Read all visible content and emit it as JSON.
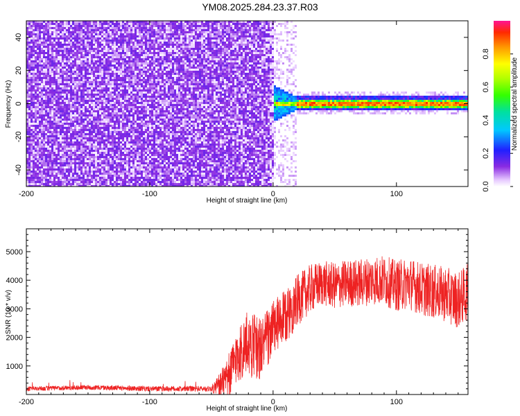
{
  "title": "YM08.2025.284.23.37.R03",
  "colors": {
    "snr_line": "#ee2222",
    "noise_purple": "#7a1ff0",
    "frame": "#000000"
  },
  "chart_data": [
    {
      "type": "heatmap",
      "xlabel": "Height of straight line (km)",
      "ylabel": "Frequency (Hz)",
      "xlim": [
        -200,
        158
      ],
      "ylim": [
        -50,
        50
      ],
      "xticks": [
        "-200",
        "-100",
        "0",
        "100"
      ],
      "yticks": [
        "-40",
        "-20",
        "0",
        "20",
        "40"
      ],
      "xtick_values": [
        -200,
        -100,
        0,
        100
      ],
      "ytick_values": [
        -40,
        -20,
        0,
        20,
        40
      ],
      "colorbar": {
        "label": "Normalized spectral amplitude",
        "range": [
          0,
          1
        ],
        "ticks": [
          "0.0",
          "0.2",
          "0.4",
          "0.6",
          "0.8"
        ],
        "tick_values": [
          0.0,
          0.2,
          0.4,
          0.6,
          0.8
        ]
      },
      "regions": [
        {
          "x_range": [
            -200,
            0
          ],
          "freq_range": [
            -50,
            50
          ],
          "amplitude": "low, broadband noise"
        },
        {
          "x_range": [
            0,
            158
          ],
          "freq_center": 0,
          "amplitude": "high, narrowband signal near 0 Hz"
        }
      ]
    },
    {
      "type": "line",
      "xlabel": "Height of straight line (km)",
      "ylabel": "SNR (10 * v/v)",
      "xlim": [
        -200,
        158
      ],
      "ylim": [
        0,
        5800
      ],
      "xticks": [
        "-200",
        "-100",
        "0",
        "100"
      ],
      "yticks": [
        "1000",
        "2000",
        "3000",
        "4000",
        "5000"
      ],
      "xtick_values": [
        -200,
        -100,
        0,
        100
      ],
      "ytick_values": [
        1000,
        2000,
        3000,
        4000,
        5000
      ],
      "trend": [
        {
          "x": -200,
          "y": 200
        },
        {
          "x": -150,
          "y": 250
        },
        {
          "x": -100,
          "y": 200
        },
        {
          "x": -50,
          "y": 200
        },
        {
          "x": -38,
          "y": 400
        },
        {
          "x": -30,
          "y": 1300
        },
        {
          "x": -20,
          "y": 1800
        },
        {
          "x": -10,
          "y": 1600
        },
        {
          "x": 0,
          "y": 2300
        },
        {
          "x": 10,
          "y": 2700
        },
        {
          "x": 20,
          "y": 3300
        },
        {
          "x": 30,
          "y": 3700
        },
        {
          "x": 40,
          "y": 3900
        },
        {
          "x": 50,
          "y": 3800
        },
        {
          "x": 60,
          "y": 3900
        },
        {
          "x": 70,
          "y": 3900
        },
        {
          "x": 80,
          "y": 4000
        },
        {
          "x": 90,
          "y": 4000
        },
        {
          "x": 100,
          "y": 3800
        },
        {
          "x": 110,
          "y": 3900
        },
        {
          "x": 120,
          "y": 3700
        },
        {
          "x": 130,
          "y": 3600
        },
        {
          "x": 140,
          "y": 3500
        },
        {
          "x": 150,
          "y": 3300
        },
        {
          "x": 158,
          "y": 3600
        }
      ],
      "noise_amplitude": [
        {
          "x": -200,
          "y": 80
        },
        {
          "x": -50,
          "y": 100
        },
        {
          "x": -40,
          "y": 700
        },
        {
          "x": -20,
          "y": 1200
        },
        {
          "x": 0,
          "y": 1000
        },
        {
          "x": 40,
          "y": 800
        },
        {
          "x": 100,
          "y": 900
        },
        {
          "x": 158,
          "y": 1000
        }
      ]
    }
  ]
}
